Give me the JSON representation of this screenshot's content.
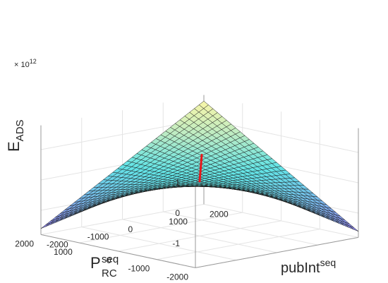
{
  "chart_data": {
    "type": "surface",
    "xlabel": "P",
    "xlabel_sup": "seq",
    "xlabel_sub": "RC",
    "ylabel": "pubInt",
    "ylabel_sup": "seq",
    "zlabel": "E",
    "zlabel_sub": "ADS",
    "exponent": "× 10",
    "exponent_power": "12",
    "x_ticks": [
      "-2000",
      "-1000",
      "0",
      "1000",
      "2000"
    ],
    "y_ticks": [
      "-2000",
      "-1000",
      "0",
      "1000",
      "2000"
    ],
    "z_ticks": [
      "-1",
      "0",
      "1"
    ],
    "xlim": [
      -2000,
      2000
    ],
    "ylim": [
      -2000,
      2000
    ],
    "zlim": [
      -1.8,
      1.8
    ],
    "grid": true,
    "surface_function": "x * y (scaled to ~1.6e12 at corners)",
    "corner_values_e12": {
      "x-2000_y-2000": 1.6,
      "x-2000_y2000": -1.6,
      "x2000_y-2000": -1.6,
      "x2000_y2000": 1.6
    },
    "highlight_line": {
      "color": "#e8161a",
      "from": {
        "x": 0,
        "y": 0,
        "z": 0
      },
      "to": {
        "x": 1000,
        "y": 1000,
        "z": 0.35
      }
    },
    "colormap": [
      "#8f7fe8",
      "#78b9ea",
      "#62e4e6",
      "#bdebc3",
      "#f9f6a8"
    ]
  }
}
